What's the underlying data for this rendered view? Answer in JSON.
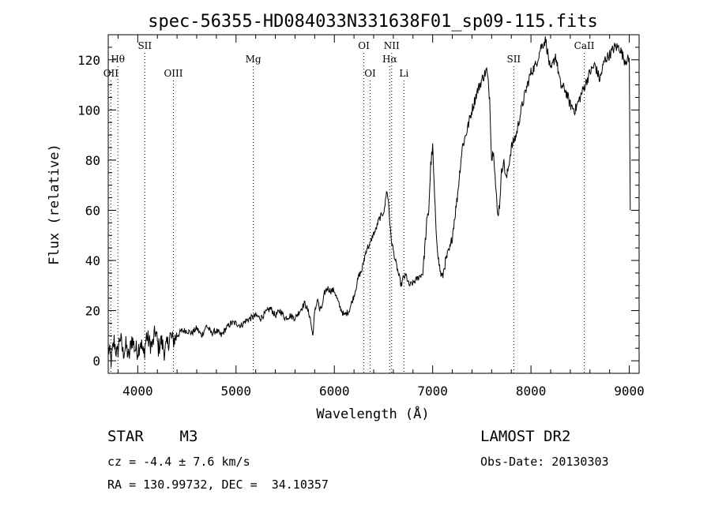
{
  "chart_data": {
    "type": "line",
    "title": "spec-56355-HD084033N331638F01_sp09-115.fits",
    "xlabel": "Wavelength (Å)",
    "ylabel": "Flux (relative)",
    "xlim": [
      3700,
      9100
    ],
    "ylim": [
      -5,
      130
    ],
    "xticks": [
      4000,
      5000,
      6000,
      7000,
      8000,
      9000
    ],
    "yticks": [
      0,
      20,
      40,
      60,
      80,
      100,
      120
    ],
    "grid": false,
    "series": [
      {
        "name": "flux",
        "x": [
          3700,
          3730,
          3760,
          3790,
          3820,
          3850,
          3880,
          3910,
          3940,
          3970,
          4000,
          4030,
          4060,
          4090,
          4120,
          4150,
          4180,
          4210,
          4240,
          4270,
          4300,
          4330,
          4360,
          4400,
          4450,
          4500,
          4550,
          4600,
          4650,
          4700,
          4750,
          4800,
          4850,
          4900,
          4950,
          5000,
          5050,
          5100,
          5150,
          5200,
          5250,
          5300,
          5350,
          5400,
          5450,
          5500,
          5550,
          5600,
          5650,
          5700,
          5750,
          5780,
          5800,
          5830,
          5850,
          5880,
          5900,
          5930,
          5960,
          6000,
          6050,
          6100,
          6150,
          6200,
          6250,
          6280,
          6300,
          6330,
          6360,
          6390,
          6420,
          6450,
          6480,
          6510,
          6530,
          6550,
          6560,
          6570,
          6580,
          6600,
          6620,
          6650,
          6680,
          6700,
          6730,
          6760,
          6800,
          6850,
          6900,
          6920,
          6940,
          6960,
          6980,
          7000,
          7030,
          7060,
          7080,
          7100,
          7120,
          7150,
          7180,
          7200,
          7250,
          7300,
          7350,
          7400,
          7450,
          7500,
          7550,
          7580,
          7600,
          7620,
          7640,
          7660,
          7680,
          7700,
          7720,
          7750,
          7800,
          7850,
          7900,
          7950,
          8000,
          8050,
          8100,
          8150,
          8200,
          8250,
          8300,
          8350,
          8400,
          8450,
          8500,
          8550,
          8600,
          8650,
          8700,
          8750,
          8800,
          8850,
          8900,
          8950,
          9000,
          9010
        ],
        "y": [
          5,
          0,
          8,
          2,
          10,
          3,
          6,
          1,
          9,
          5,
          4,
          8,
          2,
          10,
          7,
          6,
          12,
          5,
          8,
          4,
          6,
          10,
          8,
          10,
          12,
          12,
          11,
          13,
          10,
          14,
          11,
          12,
          10,
          13,
          15,
          15,
          14,
          16,
          17,
          18,
          17,
          19,
          21,
          18,
          20,
          17,
          18,
          17,
          20,
          23,
          18,
          10,
          19,
          25,
          20,
          22,
          27,
          29,
          28,
          28,
          22,
          18,
          20,
          26,
          34,
          36,
          40,
          45,
          46,
          50,
          52,
          56,
          58,
          60,
          68,
          64,
          58,
          52,
          48,
          44,
          40,
          35,
          30,
          33,
          34,
          30,
          31,
          33,
          35,
          45,
          55,
          60,
          78,
          85,
          55,
          40,
          35,
          33,
          38,
          42,
          45,
          50,
          65,
          85,
          92,
          100,
          107,
          112,
          116,
          105,
          80,
          85,
          70,
          58,
          62,
          75,
          80,
          72,
          85,
          90,
          100,
          108,
          115,
          118,
          125,
          128,
          115,
          122,
          110,
          108,
          102,
          100,
          105,
          110,
          115,
          118,
          112,
          120,
          122,
          125,
          125,
          120,
          120,
          60
        ],
        "color": "#000000"
      }
    ],
    "line_annotations": [
      {
        "name": "OII",
        "wavelength": 3727,
        "row": 3
      },
      {
        "name": "Hθ",
        "wavelength": 3798,
        "row": 2
      },
      {
        "name": "SII",
        "wavelength": 4072,
        "row": 1
      },
      {
        "name": "OIII",
        "wavelength": 4363,
        "row": 3
      },
      {
        "name": "Mg",
        "wavelength": 5175,
        "row": 2
      },
      {
        "name": "OI",
        "wavelength": 6300,
        "row": 1
      },
      {
        "name": "OI",
        "wavelength": 6364,
        "row": 3
      },
      {
        "name": "NII",
        "wavelength": 6583,
        "row": 1
      },
      {
        "name": "Hα",
        "wavelength": 6563,
        "row": 2
      },
      {
        "name": "Li",
        "wavelength": 6708,
        "row": 3
      },
      {
        "name": "SII",
        "wavelength": 7825,
        "row": 2
      },
      {
        "name": "CaII",
        "wavelength": 8542,
        "row": 1
      }
    ]
  },
  "footer": {
    "object_class": "STAR    M3",
    "survey": "LAMOST DR2",
    "redshift": "cz = -4.4 ± 7.6 km/s",
    "obs_date": "Obs-Date: 20130303",
    "coords": "RA = 130.99732, DEC =  34.10357"
  }
}
